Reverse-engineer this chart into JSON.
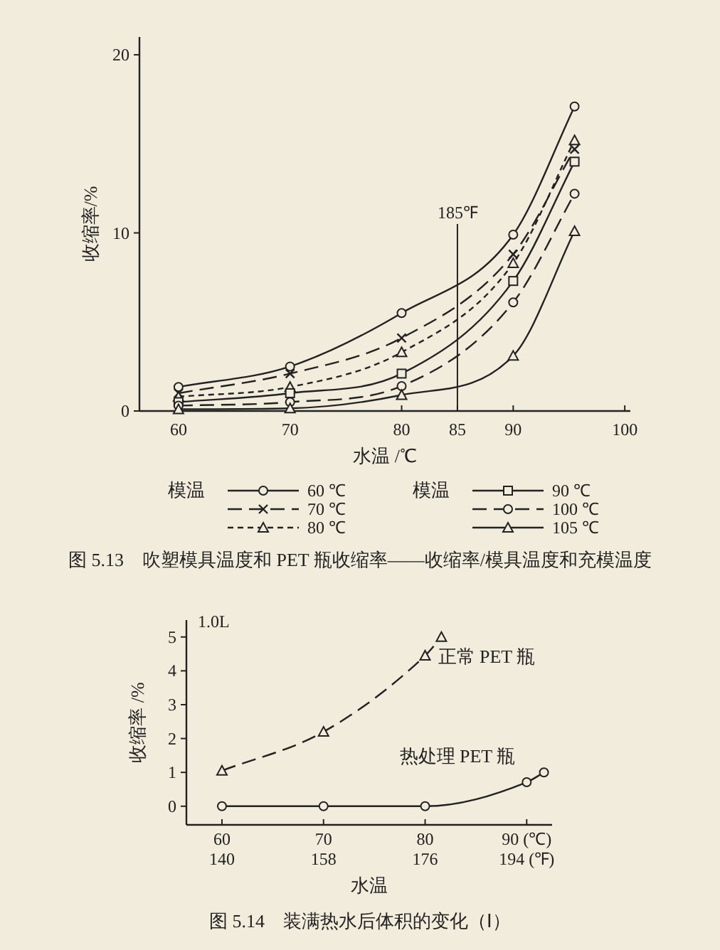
{
  "chart_data": [
    {
      "type": "line",
      "xlabel": "水温 /℃",
      "ylabel": "收缩率/%",
      "legend_title": "模温",
      "legend": "bottom",
      "xlim": [
        56.5,
        100.5
      ],
      "ylim": [
        0,
        21
      ],
      "xticks": [
        60,
        70,
        80,
        85,
        90,
        100
      ],
      "yticks": [
        0,
        10,
        20
      ],
      "x": [
        60,
        70,
        80,
        90,
        95.5
      ],
      "series": [
        {
          "name": "60 ℃",
          "color": "#222222",
          "marker": "circle",
          "line_style": "solid",
          "values": [
            1.35,
            2.5,
            5.5,
            9.9,
            17.1
          ]
        },
        {
          "name": "70 ℃",
          "color": "#222222",
          "marker": "cross",
          "line_style": "dashed",
          "values": [
            1.0,
            2.1,
            4.1,
            8.8,
            14.7
          ]
        },
        {
          "name": "80 ℃",
          "color": "#222222",
          "marker": "triangle",
          "line_style": "dotted",
          "values": [
            0.8,
            1.35,
            3.3,
            8.3,
            15.2
          ]
        },
        {
          "name": "90 ℃",
          "color": "#222222",
          "marker": "square",
          "line_style": "solid",
          "values": [
            0.5,
            1.0,
            2.1,
            7.3,
            14.0
          ]
        },
        {
          "name": "100 ℃",
          "color": "#222222",
          "marker": "circle",
          "line_style": "dashed",
          "values": [
            0.3,
            0.5,
            1.4,
            6.1,
            12.2
          ]
        },
        {
          "name": "105 ℃",
          "color": "#222222",
          "marker": "triangle",
          "line_style": "solid",
          "values": [
            0.1,
            0.15,
            0.9,
            3.1,
            10.1
          ]
        }
      ],
      "ref_lines": [
        {
          "axis": "x",
          "value": 85,
          "label": "185℉",
          "color": "#222222",
          "line_style": "solid"
        }
      ],
      "annotations": [
        "图 5.13　吹塑模具温度和 PET 瓶收缩率——收缩率/模具温度和充模温度"
      ]
    },
    {
      "type": "line",
      "xlabel": "水温",
      "ylabel": "收缩率 /%",
      "legend": false,
      "xlim": [
        56.5,
        92.5
      ],
      "ylim": [
        -0.55,
        5.5
      ],
      "xticks": [
        60,
        70,
        80,
        {
          "value": 90,
          "label": "90 (℃)"
        }
      ],
      "x2lim": [
        133.7,
        198.5
      ],
      "x2ticks": [
        140,
        158,
        176,
        {
          "value": 194,
          "label": "194 (℉)"
        }
      ],
      "yticks": [
        0,
        1,
        2,
        3,
        4,
        5
      ],
      "series": [
        {
          "name": "正常 PET 瓶",
          "color": "#222222",
          "marker": "triangle",
          "line_style": "dashed",
          "x": [
            60,
            70,
            80,
            81.6
          ],
          "values": [
            1.05,
            2.2,
            4.45,
            5.0
          ]
        },
        {
          "name": "热处理 PET 瓶",
          "color": "#222222",
          "marker": "circle",
          "line_style": "solid",
          "x": [
            60,
            70,
            80,
            90,
            91.7
          ],
          "values": [
            0,
            0,
            0,
            0.71,
            1.0
          ]
        }
      ],
      "annotations": [
        "1.0L",
        "图 5.14　装满热水后体积的变化（Ⅰ）"
      ]
    }
  ]
}
